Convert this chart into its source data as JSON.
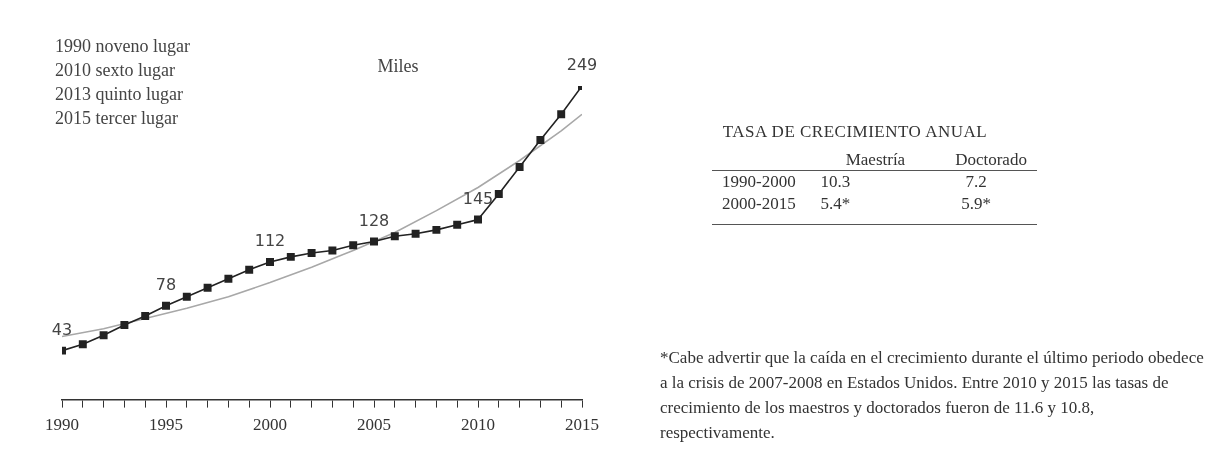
{
  "chart_data": [
    {
      "type": "line",
      "ylabel": "Miles",
      "x": [
        1990,
        1991,
        1992,
        1993,
        1994,
        1995,
        1996,
        1997,
        1998,
        1999,
        2000,
        2001,
        2002,
        2003,
        2004,
        2005,
        2006,
        2007,
        2008,
        2009,
        2010,
        2011,
        2012,
        2013,
        2014,
        2015
      ],
      "series": [
        {
          "color": "#222222",
          "values": [
            43,
            48,
            55,
            63,
            70,
            78,
            85,
            92,
            99,
            106,
            112,
            116,
            119,
            121,
            125,
            128,
            132,
            134,
            137,
            141,
            145,
            165,
            186,
            207,
            227,
            249
          ],
          "value_labels": [
            "43",
            null,
            null,
            null,
            null,
            "78",
            null,
            null,
            null,
            null,
            "112",
            null,
            null,
            null,
            null,
            "128",
            null,
            null,
            null,
            null,
            "145",
            null,
            null,
            null,
            null,
            "249"
          ]
        },
        {
          "type": "line",
          "color": "#a8a8a8",
          "marker": "none",
          "x": [
            1990,
            1992,
            1994,
            1996,
            1998,
            2000,
            2002,
            2004,
            2006,
            2008,
            2010,
            2012,
            2014,
            2015
          ],
          "values": [
            54,
            60,
            68,
            76,
            85,
            96,
            108,
            121,
            135,
            152,
            170,
            191,
            214,
            227
          ]
        }
      ],
      "marker": "square",
      "xlim": [
        1990,
        2015
      ],
      "xticks": [
        1990,
        {
          "value": 1991,
          "label": null
        },
        {
          "value": 1992,
          "label": null
        },
        {
          "value": 1993,
          "label": null
        },
        {
          "value": 1994,
          "label": null
        },
        1995,
        {
          "value": 1996,
          "label": null
        },
        {
          "value": 1997,
          "label": null
        },
        {
          "value": 1998,
          "label": null
        },
        {
          "value": 1999,
          "label": null
        },
        2000,
        {
          "value": 2001,
          "label": null
        },
        {
          "value": 2002,
          "label": null
        },
        {
          "value": 2003,
          "label": null
        },
        {
          "value": 2004,
          "label": null
        },
        2005,
        {
          "value": 2006,
          "label": null
        },
        {
          "value": 2007,
          "label": null
        },
        {
          "value": 2008,
          "label": null
        },
        {
          "value": 2009,
          "label": null
        },
        2010,
        {
          "value": 2011,
          "label": null
        },
        {
          "value": 2012,
          "label": null
        },
        {
          "value": 2013,
          "label": null
        },
        {
          "value": 2014,
          "label": null
        },
        2015
      ],
      "tick_labels": "x",
      "grid": false,
      "legend": false,
      "annotations": [
        "1990 noveno lugar",
        "2010 sexto lugar",
        "2013 quinto lugar",
        "2015 tercer lugar"
      ]
    },
    {
      "type": "other",
      "title": "TASA DE CRECIMIENTO ANUAL",
      "categories": [
        "Maestría",
        "Doctorado"
      ],
      "y_categories": [
        "1990-2000",
        "2000-2015"
      ],
      "cell_labels": [
        [
          "10.3",
          "7.2"
        ],
        [
          "5.4*",
          "5.9*"
        ]
      ],
      "annotations": [
        "*Cabe advertir que la caída en el crecimiento durante el último periodo obedece a la crisis de 2007-2008 en Estados Unidos. Entre 2010 y 2015 las tasas de crecimiento de los maestros y doctorados fueron de 11.6 y 10.8, respectivamente."
      ]
    }
  ]
}
